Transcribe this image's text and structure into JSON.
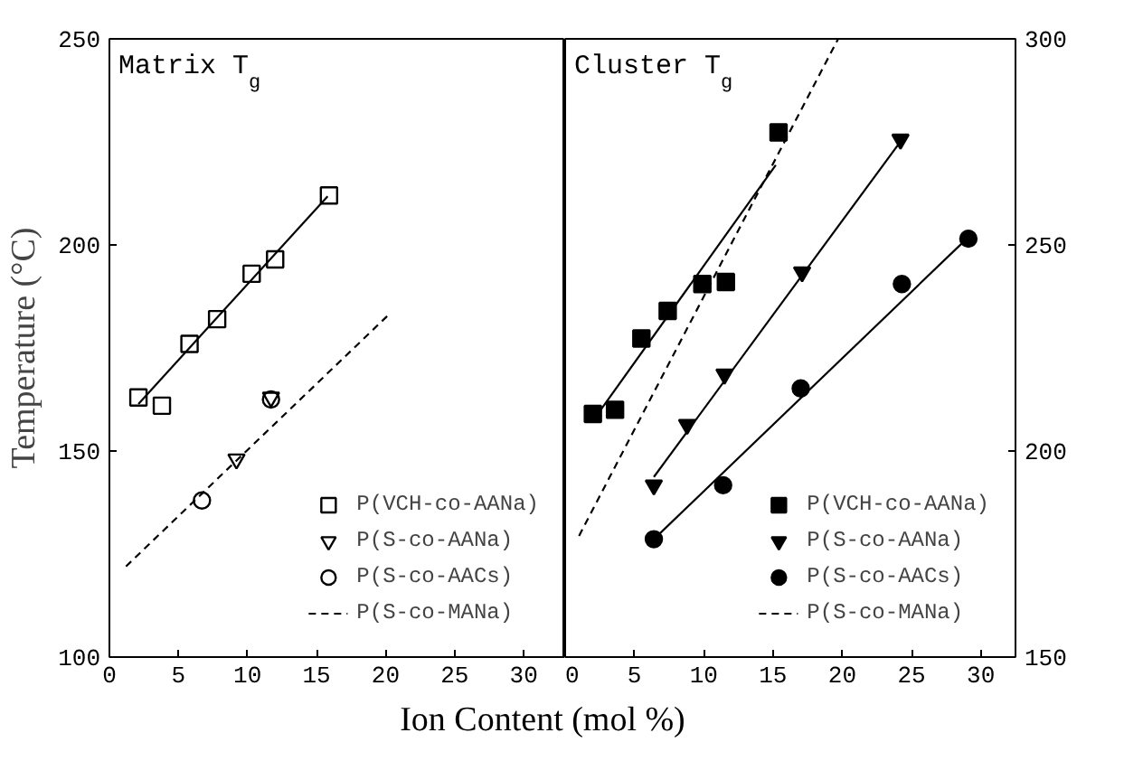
{
  "chart_data": [
    {
      "type": "scatter",
      "title": "Matrix T$_{g}$",
      "xlabel": "Ion Content (mol %)",
      "ylabel": "Temperature (°C)",
      "xlim": [
        0,
        33
      ],
      "xticks": [
        0,
        5,
        10,
        15,
        20,
        25,
        30
      ],
      "ylim": [
        100,
        250
      ],
      "yticks": [
        100,
        150,
        200,
        250
      ],
      "grid": false,
      "legend": "bottom right",
      "series": [
        {
          "name": "P(VCH-co-AANa)",
          "color": "#000000",
          "marker": "square",
          "x": [
            2.1,
            3.8,
            5.8,
            7.8,
            10.3,
            12.0,
            15.9
          ],
          "values": [
            163,
            161,
            176,
            182,
            193,
            196.5,
            212
          ]
        },
        {
          "name": "P(S-co-AANa)",
          "color": "#000000",
          "marker": "triangle",
          "x": [
            9.2,
            11.7
          ],
          "values": [
            148,
            163
          ]
        },
        {
          "name": "P(S-co-AACs)",
          "color": "#000000",
          "marker": "circle",
          "x": [
            6.7,
            11.7
          ],
          "values": [
            138,
            162.5
          ]
        },
        {
          "type": "line",
          "color": "#000000",
          "line_style": "solid",
          "x": [
            2.1,
            15.8
          ],
          "values": [
            161.4,
            211.8
          ]
        },
        {
          "type": "line",
          "name": "P(S-co-MANa)",
          "color": "#000000",
          "line_style": "dashed",
          "x": [
            1.2,
            20.2
          ],
          "values": [
            122,
            183
          ]
        }
      ]
    },
    {
      "type": "scatter",
      "title": "Cluster T$_{g}$",
      "xlim": [
        0,
        32.5
      ],
      "xticks": [
        0,
        5,
        10,
        15,
        20,
        25,
        30
      ],
      "y2lim": [
        150,
        300
      ],
      "y2ticks": [
        150,
        200,
        250,
        300
      ],
      "grid": false,
      "legend": "bottom right",
      "series": [
        {
          "name": "P(VCH-co-AANa)",
          "color": "#000000",
          "marker": "square",
          "axis": "y2",
          "x": [
            2.0,
            3.6,
            5.5,
            7.4,
            9.9,
            11.6,
            15.4
          ],
          "values": [
            209,
            210,
            227.3,
            234,
            240.5,
            241,
            277.3
          ]
        },
        {
          "name": "P(S-co-AANa)",
          "color": "#000000",
          "marker": "triangle",
          "axis": "y2",
          "x": [
            6.4,
            8.8,
            11.5,
            17.1,
            24.2
          ],
          "values": [
            191.7,
            206.4,
            218.6,
            243.4,
            275.6
          ]
        },
        {
          "name": "P(S-co-AACs)",
          "color": "#000000",
          "marker": "circle",
          "axis": "y2",
          "x": [
            6.4,
            11.4,
            17.0,
            24.3,
            29.1
          ],
          "values": [
            178.6,
            191.7,
            215.2,
            240.5,
            251.5
          ]
        },
        {
          "type": "line",
          "color": "#000000",
          "line_style": "solid",
          "axis": "y2",
          "x": [
            2.0,
            15.2
          ],
          "values": [
            207.3,
            269.4
          ]
        },
        {
          "type": "line",
          "color": "#000000",
          "line_style": "solid",
          "axis": "y2",
          "x": [
            6.4,
            24.2
          ],
          "values": [
            193.7,
            275.1
          ]
        },
        {
          "type": "line",
          "color": "#000000",
          "line_style": "solid",
          "axis": "y2",
          "x": [
            6.4,
            29.1
          ],
          "values": [
            178.6,
            251.9
          ]
        },
        {
          "type": "line",
          "name": "P(S-co-MANa)",
          "color": "#000000",
          "line_style": "dashed",
          "axis": "y2",
          "x": [
            1.0,
            19.7
          ],
          "values": [
            179.4,
            300
          ]
        }
      ]
    }
  ]
}
